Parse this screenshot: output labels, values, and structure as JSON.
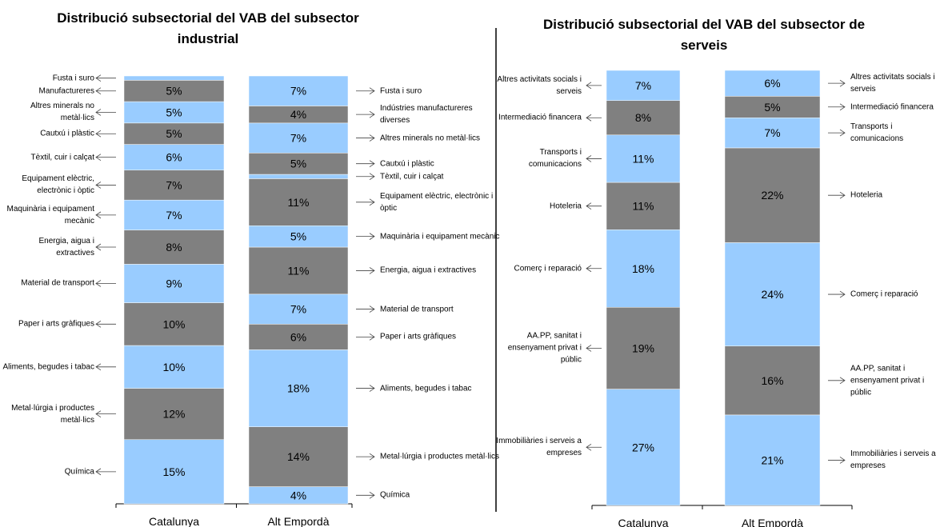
{
  "chart_data": [
    {
      "type": "stacked_bar",
      "title": "Distribució subsectorial del VAB del subsector industrial",
      "categories": [
        "Catalunya",
        "Alt Empordà"
      ],
      "ylim": [
        0,
        100
      ],
      "colors": [
        "#99ccff",
        "#808080"
      ],
      "segments": [
        {
          "labels": [
            "Química",
            "Metal·lúrgia i productes metàl·lics",
            "Aliments, begudes i tabac",
            "Paper i arts gràfiques",
            "Material de transport",
            "Energia, aigua i extractives",
            "Maquinària i equipament mecànic",
            "Equipament elèctric, electrònic i òptic",
            "Tèxtil, cuir i calçat",
            "Cautxú i plàstic",
            "Altres minerals no metàl·lics",
            "Manufactureres",
            "Fusta i suro"
          ],
          "values": [
            15,
            12,
            10,
            10,
            9,
            8,
            7,
            7,
            6,
            5,
            5,
            5,
            1
          ],
          "value_labels": [
            "15%",
            "12%",
            "10%",
            "10%",
            "9%",
            "8%",
            "7%",
            "7%",
            "6%",
            "5%",
            "5%",
            "5%",
            null
          ]
        },
        {
          "labels": [
            "Química",
            "Metal·lúrgia i productes metàl·lics",
            "Aliments, begudes i tabac",
            "Paper i arts gràfiques",
            "Material de transport",
            "Energia, aigua i extractives",
            "Maquinària i equipament mecànic",
            "Equipament elèctric, electrònic i òptic",
            "Tèxtil, cuir i calçat",
            "Cautxú i plàstic",
            "Altres minerals no metàl·lics",
            "Indústries manufactureres diverses",
            "Fusta i suro"
          ],
          "values": [
            4,
            14,
            18,
            6,
            7,
            11,
            5,
            11,
            1,
            5,
            7,
            4,
            7
          ],
          "value_labels": [
            "4%",
            "14%",
            "18%",
            "6%",
            "7%",
            "11%",
            "5%",
            "11%",
            null,
            "5%",
            "7%",
            "4%",
            "7%"
          ]
        }
      ]
    },
    {
      "type": "stacked_bar",
      "title": "Distribució subsectorial del VAB del subsector de serveis",
      "categories": [
        "Catalunya",
        "Alt Empordà"
      ],
      "ylim": [
        0,
        101
      ],
      "colors": [
        "#99ccff",
        "#808080"
      ],
      "segments": [
        {
          "labels": [
            "Immobiliàries i serveis a empreses",
            "AA.PP, sanitat i ensenyament privat i públic",
            "Comerç i reparació",
            "Hoteleria",
            "Transports i comunicacions",
            "Intermediació financera",
            "Altres activitats socials i serveis"
          ],
          "values": [
            27,
            19,
            18,
            11,
            11,
            8,
            7
          ],
          "value_labels": [
            "27%",
            "19%",
            "18%",
            "11%",
            "11%",
            "8%",
            "7%"
          ]
        },
        {
          "labels": [
            "Immobiliàries i serveis a empreses",
            "AA.PP, sanitat i ensenyament privat i públic",
            "Comerç i reparació",
            "Hoteleria",
            "Transports i comunicacions",
            "Intermediació financera",
            "Altres activitats socials i serveis"
          ],
          "values": [
            21,
            16,
            24,
            22,
            7,
            5,
            6
          ],
          "value_labels": [
            "21%",
            "16%",
            "24%",
            "22%",
            "7%",
            "5%",
            "6%"
          ]
        }
      ]
    }
  ]
}
